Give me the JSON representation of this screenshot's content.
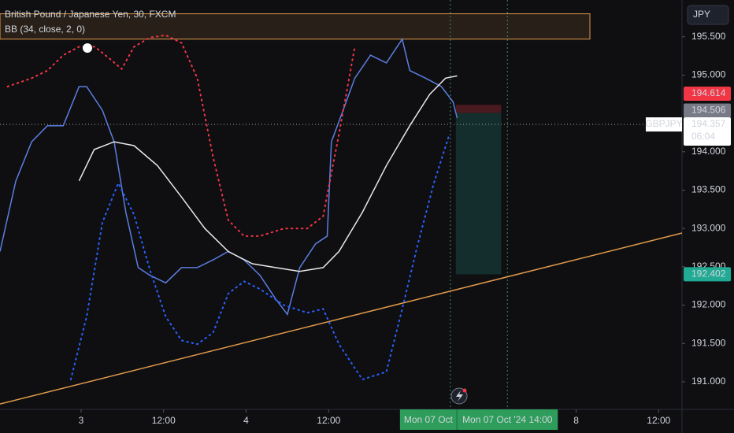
{
  "chart_data": {
    "type": "line",
    "title": "British Pound / Japanese Yen, 30, FXCM",
    "subtitle": "BB (34, close, 2, 0)",
    "currency": "JPY",
    "symbol": "GBPJPY",
    "countdown": "06:04",
    "xlim": [
      -11.8,
      87.4
    ],
    "ylim": [
      190.64,
      195.98
    ],
    "xticks": [
      {
        "value": 0,
        "label": "3"
      },
      {
        "value": 12,
        "label": "12:00"
      },
      {
        "value": 24,
        "label": "4"
      },
      {
        "value": 36,
        "label": "12:00"
      },
      {
        "value": 72,
        "label": "8"
      },
      {
        "value": 84,
        "label": "12:00"
      }
    ],
    "x_badges": [
      {
        "value": 50.5,
        "label": "Mon 07 Oct"
      },
      {
        "value": 62,
        "label": "Mon 07 Oct '24  14:00"
      }
    ],
    "yticks": [
      {
        "value": 195.5,
        "label": "195.500"
      },
      {
        "value": 195.0,
        "label": "195.000"
      },
      {
        "value": 194.0,
        "label": "194.000"
      },
      {
        "value": 193.5,
        "label": "193.500"
      },
      {
        "value": 193.0,
        "label": "193.000"
      },
      {
        "value": 192.5,
        "label": "192.500"
      },
      {
        "value": 192.0,
        "label": "192.000"
      },
      {
        "value": 191.5,
        "label": "191.500"
      },
      {
        "value": 191.0,
        "label": "191.000"
      }
    ],
    "price_labels": [
      {
        "value": 194.614,
        "label": "194.614",
        "color": "#f23645"
      },
      {
        "value": 194.506,
        "label": "194.506",
        "color": "#787b86"
      },
      {
        "value": 194.357,
        "label": "194.357",
        "color": "#ffffff"
      },
      {
        "value": 192.402,
        "label": "192.402",
        "color": "#22ab94"
      }
    ],
    "series": [
      {
        "name": "Price",
        "color": "#5b7fe0",
        "style": "solid",
        "x": [
          -11.8,
          -9.5,
          -7.2,
          -4.9,
          -2.6,
          -0.3,
          0.8,
          3.1,
          4.8,
          6.5,
          8.3,
          10.0,
          12.3,
          14.6,
          16.9,
          19.2,
          21.4,
          23.7,
          26.0,
          28.3,
          30.0,
          31.8,
          34.1,
          35.8,
          36.4,
          38.1,
          39.8,
          42.1,
          44.4,
          46.7,
          47.8,
          50.1,
          52.4,
          54.1,
          54.7
        ],
        "values": [
          192.7,
          193.62,
          194.13,
          194.34,
          194.34,
          194.85,
          194.85,
          194.54,
          194.13,
          193.21,
          192.49,
          192.39,
          192.29,
          192.49,
          192.49,
          192.59,
          192.7,
          192.59,
          192.39,
          192.08,
          191.88,
          192.49,
          192.8,
          192.9,
          194.13,
          194.54,
          194.96,
          195.26,
          195.16,
          195.47,
          195.06,
          194.96,
          194.85,
          194.65,
          194.44
        ]
      },
      {
        "name": "BB Basis",
        "color": "#e8e8e8",
        "style": "solid",
        "x": [
          -0.3,
          1.9,
          4.8,
          7.7,
          11.1,
          14.6,
          18.0,
          21.4,
          24.9,
          28.3,
          31.8,
          35.2,
          37.5,
          40.9,
          44.4,
          47.8,
          50.7,
          53.0,
          54.7
        ],
        "values": [
          193.62,
          194.03,
          194.13,
          194.08,
          193.82,
          193.41,
          193.0,
          192.7,
          192.54,
          192.49,
          192.44,
          192.49,
          192.7,
          193.21,
          193.82,
          194.34,
          194.75,
          194.96,
          194.99
        ]
      },
      {
        "name": "BB Upper",
        "color": "#f23645",
        "style": "dotted",
        "x": [
          -10.7,
          -7.2,
          -4.9,
          -2.6,
          -0.3,
          2.0,
          4.2,
          5.9,
          7.7,
          10.0,
          12.3,
          14.6,
          16.9,
          19.2,
          21.4,
          23.7,
          26.0,
          29.5,
          32.9,
          35.2,
          37.5,
          39.8
        ],
        "values": [
          194.85,
          194.96,
          195.06,
          195.26,
          195.37,
          195.37,
          195.21,
          195.08,
          195.37,
          195.49,
          195.52,
          195.42,
          194.96,
          193.93,
          193.11,
          192.9,
          192.9,
          193.0,
          193.0,
          193.16,
          194.23,
          195.37
        ]
      },
      {
        "name": "BB Lower",
        "color": "#2962ff",
        "style": "dotted",
        "x": [
          -1.5,
          0.8,
          3.1,
          5.4,
          7.7,
          10.0,
          12.3,
          14.6,
          16.9,
          19.2,
          21.4,
          23.7,
          26.0,
          29.5,
          32.9,
          35.2,
          37.5,
          40.9,
          44.4,
          46.7,
          48.9,
          51.3,
          53.5
        ],
        "values": [
          191.03,
          191.85,
          193.08,
          193.59,
          193.18,
          192.46,
          191.85,
          191.54,
          191.49,
          191.64,
          192.15,
          192.31,
          192.21,
          192.0,
          191.9,
          191.95,
          191.49,
          191.03,
          191.13,
          191.95,
          192.77,
          193.59,
          194.21
        ]
      }
    ],
    "trendline": {
      "color": "#e09a4a",
      "x": [
        -11.8,
        87.4
      ],
      "values": [
        190.71,
        192.94
      ]
    },
    "zone": {
      "color": "#e09a4a",
      "x": [
        -11.8,
        74.0
      ],
      "values": [
        195.47,
        195.8
      ]
    },
    "position": {
      "x": [
        54.5,
        61.1
      ],
      "stop": [
        194.614,
        194.506
      ],
      "target": [
        194.506,
        192.402
      ]
    },
    "current_line": 194.357,
    "markers": {
      "x": [
        62,
        53.7
      ]
    }
  }
}
